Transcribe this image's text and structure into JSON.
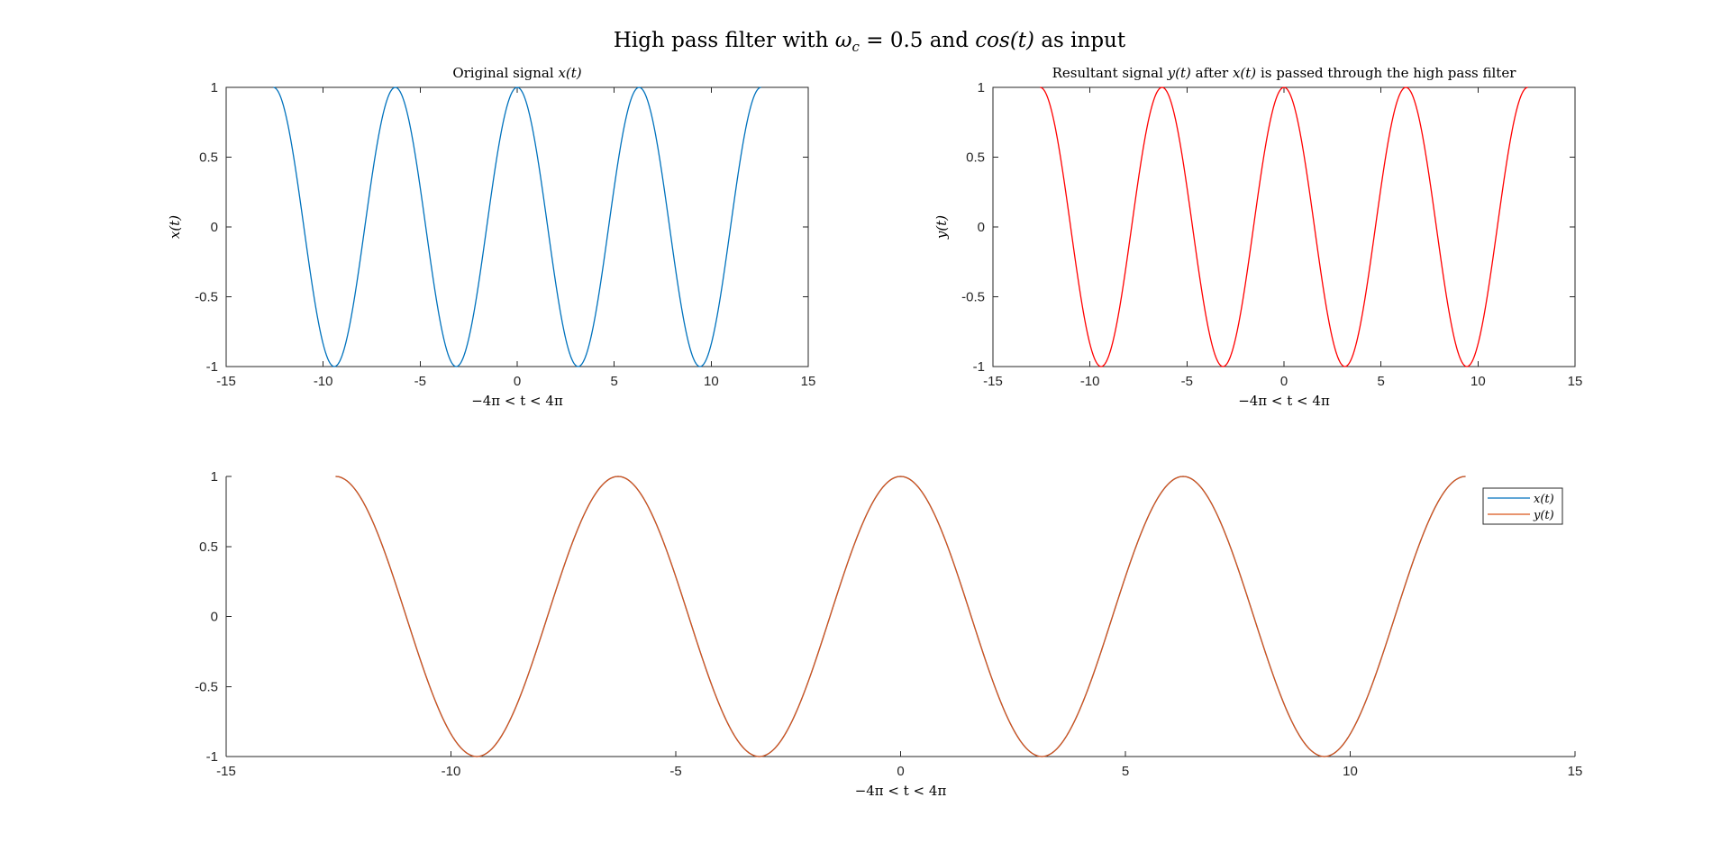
{
  "figure": {
    "suptitle": "High pass filter with ω_c = 0.5 and cos(t) as input"
  },
  "colors": {
    "series_x": "#0072BD",
    "series_y_red": "#FF0000",
    "series_y_orange": "#D95319",
    "axis": "#262626"
  },
  "chart_data": [
    {
      "type": "line",
      "title": "Original signal x(t)",
      "xlabel": "−4π < t < 4π",
      "ylabel": "x(t)",
      "xlim": [
        -15,
        15
      ],
      "ylim": [
        -1,
        1
      ],
      "xticks": [
        "-15",
        "-10",
        "-5",
        "0",
        "5",
        "10",
        "15"
      ],
      "yticks": [
        "-1",
        "-0.5",
        "0",
        "0.5",
        "1"
      ],
      "grid": false,
      "series": [
        {
          "function": "cos(t)",
          "t_range": [
            -12.566,
            12.566
          ],
          "color": "#0072BD"
        }
      ]
    },
    {
      "type": "line",
      "title": "Resultant signal y(t) after x(t) is passed through the high pass filter",
      "xlabel": "−4π < t < 4π",
      "ylabel": "y(t)",
      "xlim": [
        -15,
        15
      ],
      "ylim": [
        -1,
        1
      ],
      "xticks": [
        "-15",
        "-10",
        "-5",
        "0",
        "5",
        "10",
        "15"
      ],
      "yticks": [
        "-1",
        "-0.5",
        "0",
        "0.5",
        "1"
      ],
      "grid": false,
      "series": [
        {
          "function": "cos(t)",
          "t_range": [
            -12.566,
            12.566
          ],
          "color": "#FF0000"
        }
      ]
    },
    {
      "type": "line",
      "title": "",
      "xlabel": "−4π < t < 4π",
      "ylabel": "",
      "xlim": [
        -15,
        15
      ],
      "ylim": [
        -1,
        1
      ],
      "xticks": [
        "-15",
        "-10",
        "-5",
        "0",
        "5",
        "10",
        "15"
      ],
      "yticks": [
        "-1",
        "-0.5",
        "0",
        "0.5",
        "1"
      ],
      "grid": false,
      "box": false,
      "legend": {
        "position": "top-right",
        "entries": [
          "x(t)",
          "y(t)"
        ]
      },
      "series": [
        {
          "name": "x(t)",
          "function": "cos(t)",
          "t_range": [
            -12.566,
            12.566
          ],
          "color": "#0072BD"
        },
        {
          "name": "y(t)",
          "function": "cos(t)",
          "t_range": [
            -12.566,
            12.566
          ],
          "color": "#D95319"
        }
      ]
    }
  ]
}
